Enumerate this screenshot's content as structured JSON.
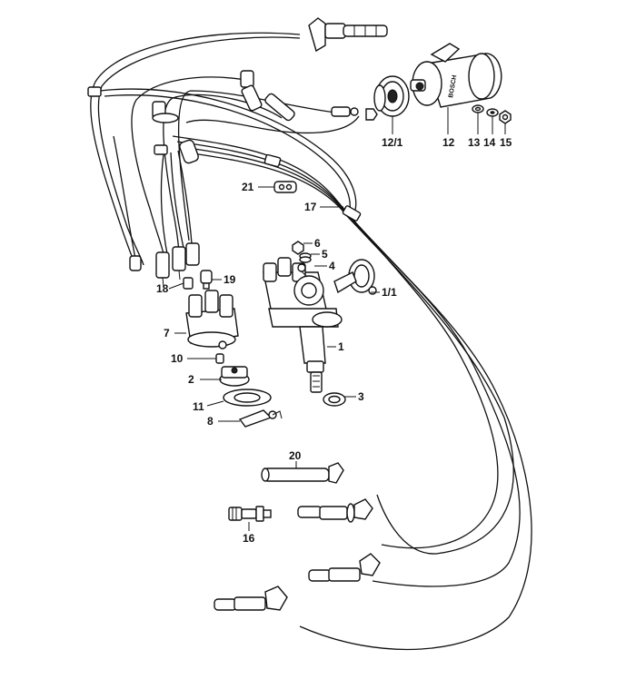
{
  "diagram": {
    "callouts": [
      {
        "id": "1",
        "text": "1"
      },
      {
        "id": "1_1",
        "text": "1/1"
      },
      {
        "id": "2",
        "text": "2"
      },
      {
        "id": "3",
        "text": "3"
      },
      {
        "id": "4",
        "text": "4"
      },
      {
        "id": "5",
        "text": "5"
      },
      {
        "id": "6",
        "text": "6"
      },
      {
        "id": "7",
        "text": "7"
      },
      {
        "id": "8",
        "text": "8"
      },
      {
        "id": "10",
        "text": "10"
      },
      {
        "id": "11",
        "text": "11"
      },
      {
        "id": "12",
        "text": "12"
      },
      {
        "id": "12_1",
        "text": "12/1"
      },
      {
        "id": "13",
        "text": "13"
      },
      {
        "id": "14",
        "text": "14"
      },
      {
        "id": "15",
        "text": "15"
      },
      {
        "id": "16",
        "text": "16"
      },
      {
        "id": "17",
        "text": "17"
      },
      {
        "id": "18",
        "text": "18"
      },
      {
        "id": "19",
        "text": "19"
      },
      {
        "id": "20",
        "text": "20"
      },
      {
        "id": "21",
        "text": "21"
      }
    ],
    "coil_brand": "BOSCH"
  }
}
